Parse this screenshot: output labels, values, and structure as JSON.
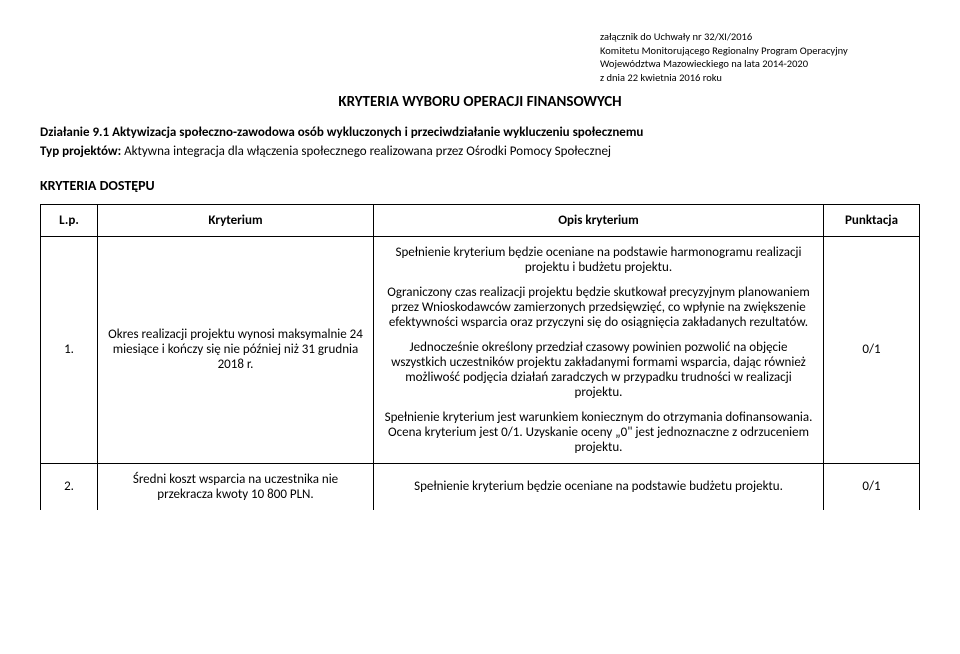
{
  "attachment": {
    "line1": "załącznik do Uchwały nr  32/XI/2016",
    "line2": "Komitetu Monitorującego Regionalny Program Operacyjny",
    "line3": "Województwa Mazowieckiego na lata 2014-2020",
    "line4": "z dnia 22 kwietnia 2016 roku"
  },
  "title": "KRYTERIA WYBORU OPERACJI FINANSOWYCH",
  "action": {
    "label": "Działanie 9.1",
    "text": "Aktywizacja społeczno-zawodowa osób wykluczonych i przeciwdziałanie wykluczeniu społecznemu"
  },
  "projectType": {
    "label": "Typ projektów:",
    "text": "Aktywna integracja dla włączenia społecznego realizowana przez Ośrodki Pomocy Społecznej"
  },
  "sectionHeader": "KRYTERIA DOSTĘPU",
  "tableHeader": {
    "lp": "L.p.",
    "kryterium": "Kryterium",
    "opis": "Opis kryterium",
    "punktacja": "Punktacja"
  },
  "rows": [
    {
      "lp": "1.",
      "kryterium": "Okres realizacji projektu wynosi maksymalnie 24 miesiące i kończy się nie później niż 31 grudnia 2018 r.",
      "opis": {
        "p1": "Spełnienie kryterium będzie oceniane na podstawie harmonogramu realizacji projektu i budżetu projektu.",
        "p2": "Ograniczony czas realizacji projektu będzie skutkował precyzyjnym planowaniem przez Wnioskodawców zamierzonych przedsięwzięć, co wpłynie na zwiększenie efektywności wsparcia oraz przyczyni się do osiągnięcia zakładanych rezultatów.",
        "p3": "Jednocześnie określony przedział czasowy powinien pozwolić na objęcie wszystkich uczestników projektu zakładanymi formami wsparcia, dając również możliwość podjęcia działań zaradczych w przypadku trudności w realizacji projektu.",
        "p4": "Spełnienie kryterium jest warunkiem koniecznym do otrzymania dofinansowania. Ocena kryterium jest 0/1. Uzyskanie oceny „0\" jest jednoznaczne z odrzuceniem projektu."
      },
      "punktacja": "0/1"
    },
    {
      "lp": "2.",
      "kryterium": "Średni koszt wsparcia na uczestnika nie przekracza kwoty 10 800 PLN.",
      "opis": {
        "p1": "Spełnienie kryterium będzie oceniane na podstawie budżetu projektu."
      },
      "punktacja": "0/1"
    }
  ]
}
